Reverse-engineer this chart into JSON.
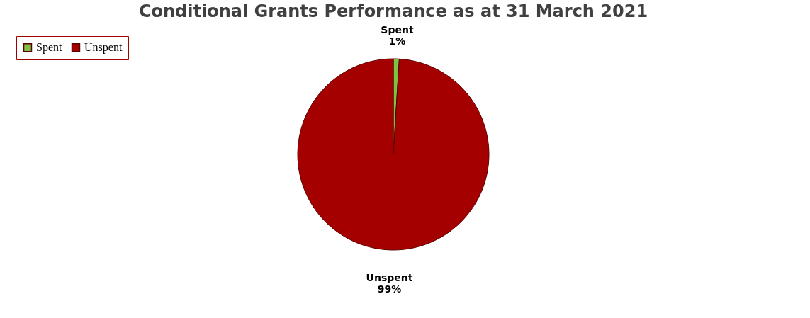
{
  "chart_data": {
    "type": "pie",
    "title": "Conditional Grants Performance as at 31 March 2021",
    "categories": [
      "Spent",
      "Unspent"
    ],
    "values": [
      1,
      99
    ],
    "colors": [
      "#7dc242",
      "#a50000"
    ],
    "value_labels": [
      "1%",
      "99%"
    ],
    "legend": "top left"
  }
}
